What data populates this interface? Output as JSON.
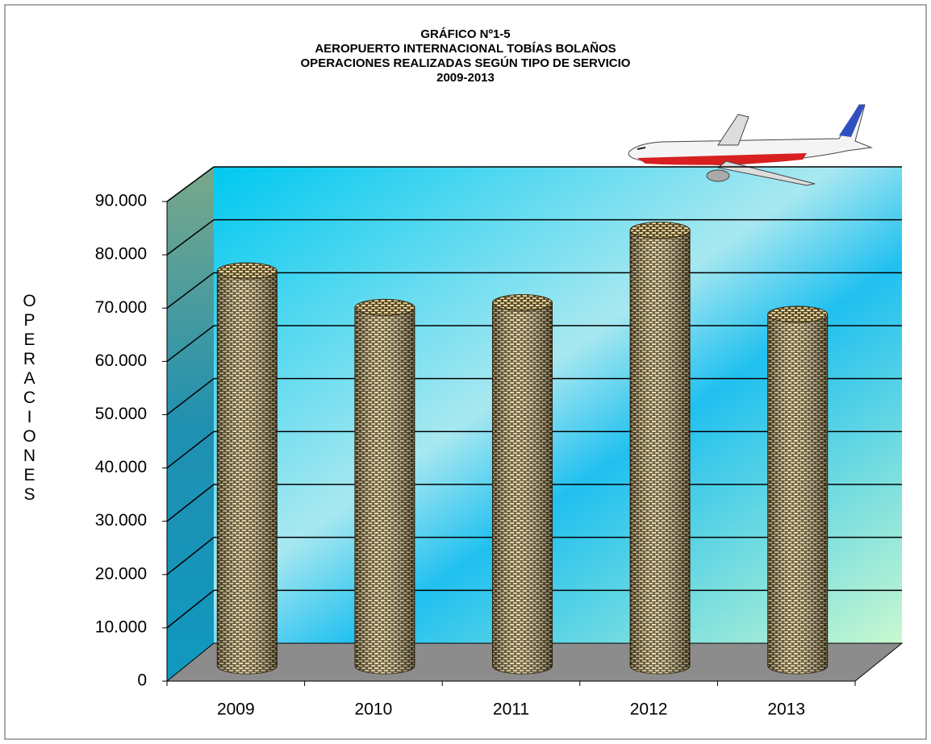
{
  "chart_data": {
    "type": "bar",
    "title_lines": [
      "GRÁFICO Nº1-5",
      "AEROPUERTO INTERNACIONAL TOBÍAS BOLAÑOS",
      "OPERACIONES REALIZADAS SEGÚN TIPO DE SERVICIO",
      "2009-2013"
    ],
    "y_label": "OPERACIONES",
    "categories": [
      "2009",
      "2010",
      "2011",
      "2012",
      "2013"
    ],
    "values": [
      74600,
      67700,
      68600,
      82300,
      66400
    ],
    "ylim": [
      0,
      90000
    ],
    "yticks": [
      0,
      {
        "value": 10000,
        "label": "10.000"
      },
      {
        "value": 20000,
        "label": "20.000"
      },
      {
        "value": 30000,
        "label": "30.000"
      },
      {
        "value": 40000,
        "label": "40.000"
      },
      {
        "value": 50000,
        "label": "50.000"
      },
      {
        "value": 60000,
        "label": "60.000"
      },
      {
        "value": 70000,
        "label": "70.000"
      },
      {
        "value": 80000,
        "label": "80.000"
      },
      {
        "value": 90000,
        "label": "90.000"
      }
    ],
    "grid": true
  }
}
